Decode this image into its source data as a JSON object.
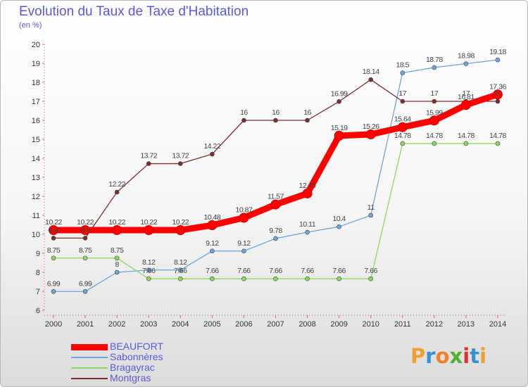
{
  "chart_data": {
    "type": "line",
    "title": "Evolution du Taux de Taxe d'Habitation",
    "unit_label": "(en %)",
    "ylim": [
      6,
      20
    ],
    "y_ticks": [
      "6",
      "7",
      "8",
      "9",
      "10",
      "11",
      "12",
      "13",
      "14",
      "15",
      "16",
      "17",
      "18",
      "19",
      "20"
    ],
    "x": [
      "2000",
      "2001",
      "2002",
      "2003",
      "2004",
      "2005",
      "2006",
      "2007",
      "2008",
      "2009",
      "2010",
      "2011",
      "2012",
      "2013",
      "2014"
    ],
    "grid": false,
    "legend_position": "bottom-left",
    "series": [
      {
        "name": "BEAUFORT",
        "color": "#ff0000",
        "values": [
          10.22,
          10.22,
          10.22,
          10.22,
          10.22,
          10.48,
          10.87,
          11.57,
          12.15,
          15.19,
          15.26,
          15.64,
          15.99,
          16.81,
          17.36
        ],
        "labels": [
          "10.22",
          "10.22",
          "10.22",
          "10.22",
          "10.22",
          "10.48",
          "10.87",
          "11.57",
          "12.15",
          "15.19",
          "15.26",
          "15.64",
          "15.99",
          "16.81",
          "17.36"
        ]
      },
      {
        "name": "Sabonnères",
        "color": "#6fa5d8",
        "values": [
          6.99,
          6.99,
          8,
          8.12,
          8.12,
          9.12,
          9.12,
          9.78,
          10.11,
          10.4,
          11,
          18.5,
          18.78,
          18.98,
          19.18
        ],
        "labels": [
          "6.99",
          "6.99",
          "8",
          "8.12",
          "8.12",
          "9.12",
          "9.12",
          "9.78",
          "10.11",
          "10.4",
          "11",
          "18.5",
          "18.78",
          "18.98",
          "19.18"
        ]
      },
      {
        "name": "Bragayrac",
        "color": "#8fd860",
        "values": [
          8.75,
          8.75,
          8.75,
          7.66,
          7.66,
          7.66,
          7.66,
          7.66,
          7.66,
          7.66,
          7.66,
          14.78,
          14.78,
          14.78,
          14.78
        ],
        "labels": [
          "8.75",
          "8.75",
          "8.75",
          "7.66",
          "7.66",
          "7.66",
          "7.66",
          "7.66",
          "7.66",
          "7.66",
          "7.66",
          "14.78",
          "14.78",
          "14.78",
          "14.78"
        ]
      },
      {
        "name": "Montgras",
        "color": "#7a2e2e",
        "values": [
          9.8,
          9.8,
          12.22,
          13.72,
          13.72,
          14.22,
          16,
          16,
          16,
          16.99,
          18.14,
          17,
          17,
          17,
          17
        ],
        "labels": [
          "9.8",
          "9.8",
          "12.22",
          "13.72",
          "13.72",
          "14.22",
          "16",
          "16",
          "16",
          "16.99",
          "18.14",
          "17",
          "17",
          "17",
          "17"
        ]
      }
    ]
  },
  "logo": {
    "text": "Proxiti",
    "colors": [
      "#f0a030",
      "#3a8fd0",
      "#f08030",
      "#50b030",
      "#e03030",
      "#3a8fd0",
      "#f0a030"
    ]
  }
}
